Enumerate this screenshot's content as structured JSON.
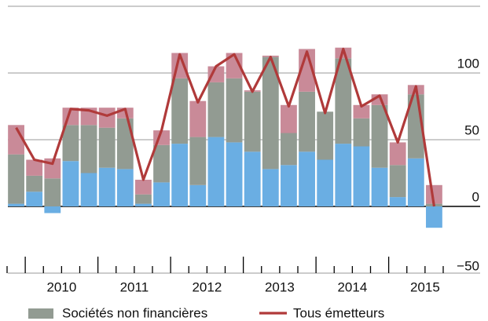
{
  "chart_data": {
    "type": "bar",
    "categories": [
      null,
      null,
      null,
      null,
      null,
      null,
      null,
      null,
      null,
      null,
      null,
      null,
      null,
      null,
      null,
      null,
      null,
      null,
      null,
      null,
      null,
      null,
      null,
      null
    ],
    "year_labels": [
      "2010",
      "2011",
      "2012",
      "2013",
      "2014",
      "2015"
    ],
    "series": [
      {
        "color": "#6aaee3",
        "values": [
          2,
          11,
          -5,
          34,
          25,
          29,
          28,
          2,
          18,
          47,
          16,
          52,
          48,
          41,
          28,
          31,
          41,
          35,
          47,
          45,
          29,
          7,
          36,
          -16
        ]
      },
      {
        "name": "Sociétés non financières",
        "color": "#929b92",
        "values": [
          37,
          12,
          21,
          27,
          36,
          30,
          38,
          7,
          28,
          49,
          36,
          41,
          48,
          45,
          84,
          24,
          45,
          36,
          64,
          21,
          47,
          24,
          48,
          2
        ]
      },
      {
        "color": "#c98a98",
        "values": [
          22,
          12,
          15,
          13,
          13,
          15,
          8,
          11,
          11,
          19,
          27,
          12,
          19,
          1,
          1,
          21,
          32,
          0,
          8,
          10,
          8,
          17,
          7,
          14
        ]
      },
      {
        "name": "Tous émetteurs",
        "type": "line",
        "color": "#b03a3a",
        "values": [
          59,
          35,
          32,
          73,
          72,
          68,
          73,
          20,
          57,
          114,
          78,
          105,
          114,
          86,
          112,
          75,
          116,
          70,
          118,
          75,
          83,
          48,
          90,
          0
        ]
      }
    ],
    "ylim": [
      -50,
      150
    ],
    "yticks": [
      {
        "value": -50,
        "label": "−50"
      },
      0,
      50,
      100
    ],
    "grid": true
  }
}
